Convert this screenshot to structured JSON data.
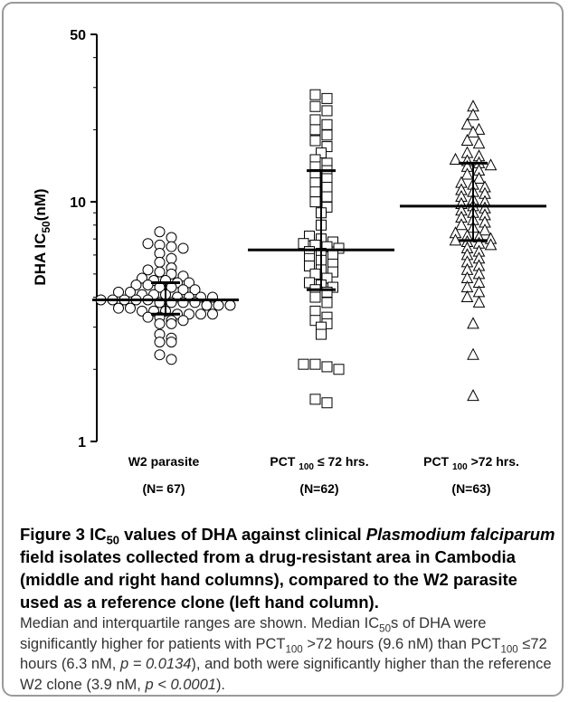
{
  "chart_data": {
    "type": "scatter",
    "title": "",
    "ylabel_prefix": "DHA IC",
    "ylabel_sub": "50",
    "ylabel_suffix": "(nM)",
    "yscale": "log",
    "ylim": [
      1,
      50
    ],
    "yticks": [
      {
        "value": 1,
        "label": "1"
      },
      {
        "value": 10,
        "label": "10"
      },
      {
        "value": 50,
        "label": "50"
      }
    ],
    "categories": [
      {
        "name": "W2 parasite",
        "n_label": "(N= 67)",
        "marker": "circle"
      },
      {
        "name": "PCT 100 ≤ 72 hrs.",
        "n_label": "(N=62)",
        "marker": "square"
      },
      {
        "name": "PCT 100 >72 hrs.",
        "n_label": "(N=63)",
        "marker": "triangle"
      }
    ],
    "series": [
      {
        "marker": "circle",
        "median": 3.9,
        "q1": 3.4,
        "q3": 4.6,
        "values": [
          7.5,
          6.7,
          6.6,
          7.1,
          6.5,
          6.4,
          6.1,
          5.8,
          5.6,
          5.3,
          5.2,
          5.1,
          5.0,
          4.9,
          4.8,
          4.7,
          4.7,
          4.6,
          4.6,
          4.5,
          4.5,
          4.4,
          4.4,
          4.3,
          4.3,
          4.2,
          4.2,
          4.1,
          4.1,
          4.1,
          4.0,
          4.0,
          4.0,
          4.0,
          3.9,
          3.9,
          3.9,
          3.9,
          3.9,
          3.8,
          3.8,
          3.8,
          3.8,
          3.7,
          3.7,
          3.7,
          3.6,
          3.6,
          3.5,
          3.5,
          3.5,
          3.4,
          3.4,
          3.4,
          3.4,
          3.3,
          3.3,
          3.2,
          3.2,
          3.1,
          3.1,
          2.8,
          2.7,
          2.6,
          2.6,
          2.3,
          2.2
        ]
      },
      {
        "marker": "square",
        "median": 6.3,
        "q1": 4.3,
        "q3": 13.5,
        "values": [
          28,
          27,
          25,
          24,
          22,
          21,
          20,
          19,
          18,
          17,
          16,
          15,
          14.5,
          14,
          13.5,
          13,
          12.5,
          12,
          11.5,
          11,
          10.5,
          10,
          9.5,
          9,
          8,
          7.2,
          7.0,
          6.8,
          6.7,
          6.6,
          6.5,
          6.4,
          6.2,
          6.1,
          6.0,
          5.8,
          5.7,
          5.5,
          5.4,
          5.2,
          5.1,
          5.0,
          4.8,
          4.6,
          4.5,
          4.4,
          4.3,
          4.2,
          4.0,
          3.8,
          3.5,
          3.3,
          3.2,
          3.1,
          3.0,
          2.8,
          2.1,
          2.1,
          2.05,
          2.0,
          1.5,
          1.45
        ]
      },
      {
        "marker": "triangle",
        "median": 9.6,
        "q1": 6.9,
        "q3": 14.5,
        "values": [
          25,
          23,
          21,
          20,
          19.5,
          18,
          17.5,
          16,
          15.5,
          15,
          14.8,
          14.5,
          14.2,
          14,
          13.5,
          13,
          12.5,
          12,
          11.8,
          11.5,
          11.2,
          11,
          10.8,
          10.5,
          10.2,
          10,
          9.8,
          9.6,
          9.4,
          9.2,
          9.0,
          8.8,
          8.6,
          8.4,
          8.2,
          8.0,
          7.8,
          7.6,
          7.4,
          7.2,
          7.0,
          6.9,
          6.8,
          6.6,
          6.4,
          6.2,
          6.0,
          5.8,
          5.6,
          5.4,
          5.2,
          5.0,
          4.8,
          4.6,
          4.4,
          4.2,
          4.0,
          3.8,
          3.1,
          2.3,
          1.55,
          6.7,
          7.1
        ]
      }
    ]
  },
  "caption": {
    "fig_label": "Figure 3",
    "title_ic": "IC",
    "title_ic_sub": "50",
    "title_part1": " values of DHA against clinical ",
    "title_italic": "Plasmodium falciparum",
    "title_part2": " field isolates collected from a drug-resistant area in Cambodia (middle and right hand columns), compared to the W2 parasite used as a reference clone (left hand column).",
    "body_part1": "Median and interquartile ranges are shown. Median IC",
    "body_sub1": "50",
    "body_part2": "s of DHA were significantly higher for patients with PCT",
    "body_sub2": "100",
    "body_part3": " >72 hours (9.6 nM) than PCT",
    "body_sub3": "100",
    "body_part4": " ≤72 hours (6.3 nM, ",
    "body_p1": "p = 0.0134",
    "body_part5": "), and both were significantly higher than the reference W2 clone (3.9 nM, ",
    "body_p2": "p < 0.0001",
    "body_part6": ")."
  }
}
